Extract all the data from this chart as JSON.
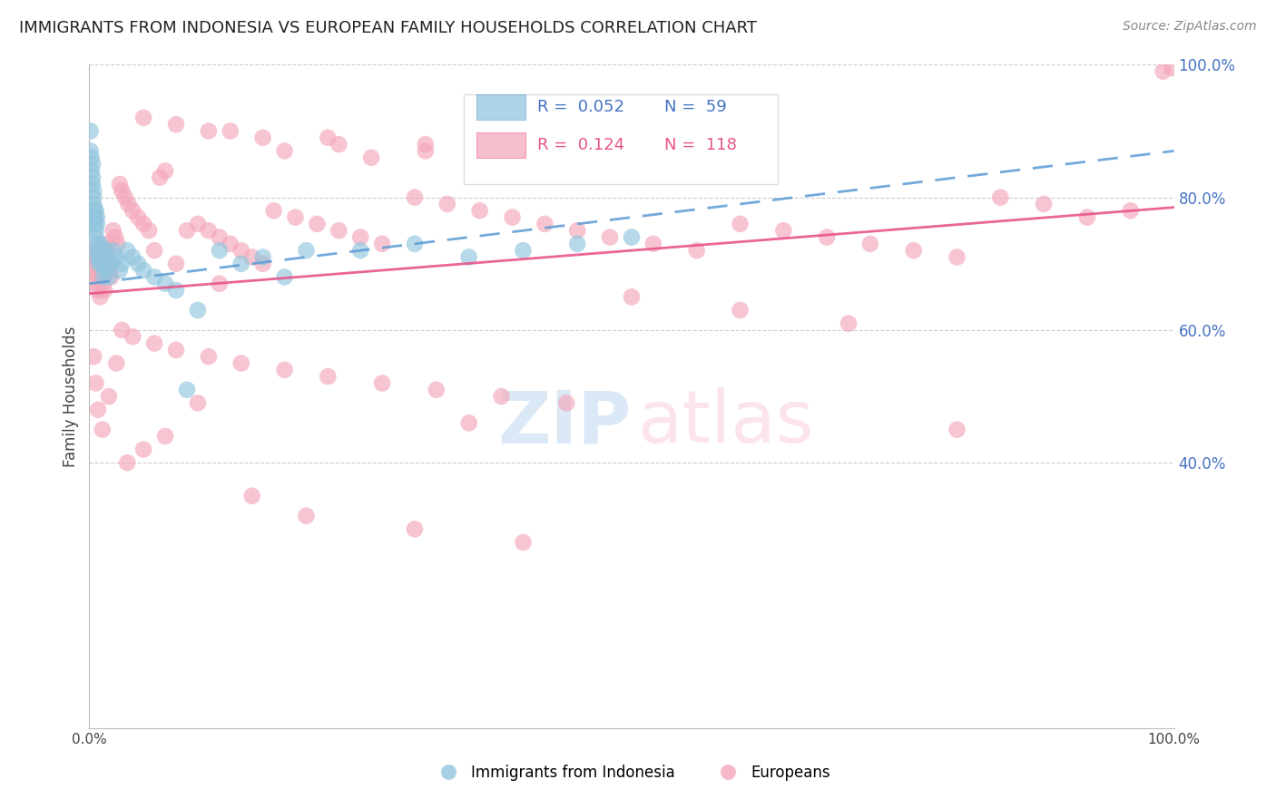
{
  "title": "IMMIGRANTS FROM INDONESIA VS EUROPEAN FAMILY HOUSEHOLDS CORRELATION CHART",
  "source": "Source: ZipAtlas.com",
  "ylabel": "Family Households",
  "xlim": [
    0,
    1
  ],
  "ylim": [
    0,
    1
  ],
  "xticklabels": [
    "0.0%",
    "",
    "",
    "",
    "",
    "",
    "",
    "",
    "",
    "",
    "100.0%"
  ],
  "ytick_right_labels": [
    "100.0%",
    "80.0%",
    "60.0%",
    "40.0%"
  ],
  "ytick_right_vals": [
    1.0,
    0.8,
    0.6,
    0.4
  ],
  "legend_r1": "0.052",
  "legend_n1": "59",
  "legend_r2": "0.124",
  "legend_n2": "118",
  "color_blue": "#92C5DE",
  "color_pink": "#F4A7B9",
  "color_blue_line": "#5B9BD5",
  "color_pink_line": "#E8558A",
  "color_text_blue": "#4472C4",
  "color_text_pink": "#E8558A",
  "indonesia_x": [
    0.001,
    0.001,
    0.002,
    0.002,
    0.003,
    0.003,
    0.003,
    0.004,
    0.004,
    0.004,
    0.005,
    0.005,
    0.005,
    0.006,
    0.006,
    0.006,
    0.007,
    0.007,
    0.007,
    0.008,
    0.008,
    0.009,
    0.009,
    0.01,
    0.01,
    0.011,
    0.011,
    0.012,
    0.013,
    0.014,
    0.015,
    0.016,
    0.017,
    0.018,
    0.02,
    0.022,
    0.025,
    0.028,
    0.03,
    0.035,
    0.04,
    0.045,
    0.05,
    0.06,
    0.07,
    0.08,
    0.09,
    0.1,
    0.12,
    0.14,
    0.16,
    0.18,
    0.2,
    0.25,
    0.3,
    0.35,
    0.4,
    0.45,
    0.5
  ],
  "indonesia_y": [
    0.9,
    0.87,
    0.86,
    0.84,
    0.85,
    0.83,
    0.82,
    0.81,
    0.8,
    0.79,
    0.78,
    0.77,
    0.76,
    0.75,
    0.74,
    0.78,
    0.77,
    0.76,
    0.72,
    0.73,
    0.71,
    0.72,
    0.7,
    0.73,
    0.71,
    0.72,
    0.7,
    0.71,
    0.68,
    0.69,
    0.72,
    0.71,
    0.7,
    0.68,
    0.7,
    0.72,
    0.71,
    0.69,
    0.7,
    0.72,
    0.71,
    0.7,
    0.69,
    0.68,
    0.67,
    0.66,
    0.51,
    0.63,
    0.72,
    0.7,
    0.71,
    0.68,
    0.72,
    0.72,
    0.73,
    0.71,
    0.72,
    0.73,
    0.74
  ],
  "europeans_x": [
    0.001,
    0.002,
    0.003,
    0.004,
    0.005,
    0.006,
    0.007,
    0.008,
    0.009,
    0.01,
    0.011,
    0.012,
    0.013,
    0.014,
    0.015,
    0.016,
    0.017,
    0.018,
    0.019,
    0.02,
    0.022,
    0.024,
    0.026,
    0.028,
    0.03,
    0.033,
    0.036,
    0.04,
    0.045,
    0.05,
    0.055,
    0.06,
    0.065,
    0.07,
    0.08,
    0.09,
    0.1,
    0.11,
    0.12,
    0.13,
    0.14,
    0.15,
    0.16,
    0.17,
    0.19,
    0.21,
    0.23,
    0.25,
    0.27,
    0.3,
    0.33,
    0.36,
    0.39,
    0.42,
    0.45,
    0.48,
    0.52,
    0.56,
    0.6,
    0.64,
    0.68,
    0.72,
    0.76,
    0.8,
    0.84,
    0.88,
    0.92,
    0.96,
    0.99,
    0.998,
    0.004,
    0.006,
    0.008,
    0.012,
    0.018,
    0.025,
    0.035,
    0.05,
    0.07,
    0.1,
    0.15,
    0.2,
    0.3,
    0.4,
    0.5,
    0.6,
    0.7,
    0.8,
    0.03,
    0.04,
    0.06,
    0.08,
    0.11,
    0.14,
    0.18,
    0.22,
    0.27,
    0.32,
    0.38,
    0.44,
    0.35,
    0.12,
    0.18,
    0.26,
    0.38,
    0.13,
    0.22,
    0.31,
    0.42,
    0.5,
    0.05,
    0.08,
    0.11,
    0.16,
    0.23,
    0.31,
    0.41,
    0.52
  ],
  "europeans_y": [
    0.69,
    0.71,
    0.72,
    0.68,
    0.7,
    0.67,
    0.71,
    0.66,
    0.7,
    0.65,
    0.69,
    0.68,
    0.67,
    0.66,
    0.73,
    0.72,
    0.71,
    0.7,
    0.69,
    0.68,
    0.75,
    0.74,
    0.73,
    0.82,
    0.81,
    0.8,
    0.79,
    0.78,
    0.77,
    0.76,
    0.75,
    0.72,
    0.83,
    0.84,
    0.7,
    0.75,
    0.76,
    0.75,
    0.74,
    0.73,
    0.72,
    0.71,
    0.7,
    0.78,
    0.77,
    0.76,
    0.75,
    0.74,
    0.73,
    0.8,
    0.79,
    0.78,
    0.77,
    0.76,
    0.75,
    0.74,
    0.73,
    0.72,
    0.76,
    0.75,
    0.74,
    0.73,
    0.72,
    0.71,
    0.8,
    0.79,
    0.77,
    0.78,
    0.99,
    0.995,
    0.56,
    0.52,
    0.48,
    0.45,
    0.5,
    0.55,
    0.4,
    0.42,
    0.44,
    0.49,
    0.35,
    0.32,
    0.3,
    0.28,
    0.65,
    0.63,
    0.61,
    0.45,
    0.6,
    0.59,
    0.58,
    0.57,
    0.56,
    0.55,
    0.54,
    0.53,
    0.52,
    0.51,
    0.5,
    0.49,
    0.46,
    0.67,
    0.87,
    0.86,
    0.85,
    0.9,
    0.89,
    0.88,
    0.87,
    0.86,
    0.92,
    0.91,
    0.9,
    0.89,
    0.88,
    0.87,
    0.86,
    0.85
  ]
}
